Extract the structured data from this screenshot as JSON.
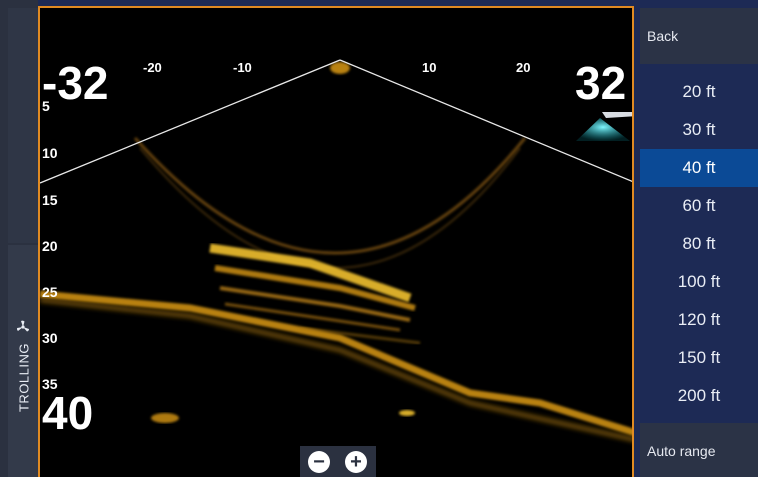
{
  "sidebar": {
    "mode_label": "TROLLING"
  },
  "sonar": {
    "left_range": "-32",
    "right_range": "32",
    "depth_range": "40",
    "range_ticks": [
      "-20",
      "-10",
      "10",
      "20"
    ],
    "depth_ticks": [
      "5",
      "10",
      "15",
      "20",
      "25",
      "30",
      "35"
    ],
    "echo_color": "#e8a317",
    "beam_color": "#2ee0e8"
  },
  "zoom": {
    "zoom_out_label": "−",
    "zoom_in_label": "+"
  },
  "menu": {
    "back_label": "Back",
    "items": [
      "20 ft",
      "30 ft",
      "40 ft",
      "60 ft",
      "80 ft",
      "100 ft",
      "120 ft",
      "150 ft",
      "200 ft"
    ],
    "selected": "40 ft",
    "auto_label": "Auto range"
  },
  "colors": {
    "accent": "#0b4a96",
    "frame": "#e08a22"
  }
}
